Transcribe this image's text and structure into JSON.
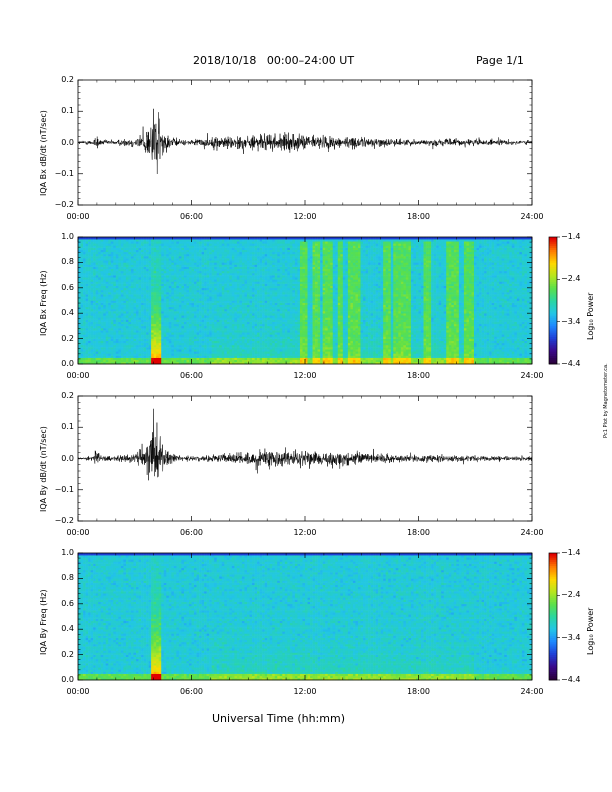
{
  "header": {
    "date_range": "2018/10/18   00:00–24:00 UT",
    "page": "Page 1/1"
  },
  "xlabel": "Universal Time (hh:mm)",
  "credit": "Pc1 Plot by Magnetometer.ca.",
  "colors": {
    "line": "#000000",
    "colormap": [
      "#2a003a",
      "#3a0a8c",
      "#1f3fd6",
      "#1e88ff",
      "#22c6e6",
      "#2ad6a0",
      "#5ce04a",
      "#b8e61e",
      "#ffd800",
      "#ff7a00",
      "#e00000"
    ]
  },
  "chart_data": [
    {
      "type": "line",
      "ylabel": "IQA Bx dB/dt (nT/sec)",
      "xlim": [
        0,
        24
      ],
      "ylim": [
        -0.2,
        0.2
      ],
      "xticks": [
        "00:00",
        "06:00",
        "12:00",
        "18:00",
        "24:00"
      ],
      "yticks": [
        "−0.2",
        "−0.1",
        "0.0",
        "0.1",
        "0.2"
      ],
      "envelope": {
        "hours": [
          0,
          0.8,
          1.0,
          1.2,
          2.0,
          3.0,
          3.5,
          3.8,
          4.0,
          4.2,
          4.4,
          4.7,
          5.0,
          5.5,
          6.0,
          7.0,
          8.0,
          9.0,
          10.0,
          11.0,
          12.0,
          13.0,
          14.0,
          15.0,
          16.0,
          17.0,
          18.0,
          19.0,
          20.0,
          21.0,
          22.0,
          23.0,
          24.0
        ],
        "amplitude": [
          0.01,
          0.015,
          0.05,
          0.015,
          0.015,
          0.03,
          0.06,
          0.12,
          0.2,
          0.2,
          0.09,
          0.05,
          0.03,
          0.015,
          0.015,
          0.03,
          0.04,
          0.04,
          0.05,
          0.05,
          0.045,
          0.04,
          0.035,
          0.03,
          0.025,
          0.02,
          0.015,
          0.02,
          0.02,
          0.02,
          0.015,
          0.015,
          0.012
        ]
      }
    },
    {
      "type": "heatmap",
      "ylabel": "IQA Bx Freq (Hz)",
      "xlim": [
        0,
        24
      ],
      "ylim": [
        0.0,
        1.0
      ],
      "xticks": [
        "00:00",
        "06:00",
        "12:00",
        "18:00",
        "24:00"
      ],
      "yticks": [
        "0.0",
        "0.2",
        "0.4",
        "0.6",
        "0.8",
        "1.0"
      ],
      "colorbar": {
        "label": "Log₁₀ Power",
        "ticks": [
          "−1.4",
          "−2.4",
          "−3.4",
          "−4.4"
        ],
        "range": [
          -4.4,
          -1.4
        ]
      },
      "bright_bands_hours": [
        [
          11.7,
          12.1
        ],
        [
          12.4,
          12.8
        ],
        [
          13.0,
          13.4
        ],
        [
          13.7,
          14.0
        ],
        [
          14.3,
          14.9
        ],
        [
          16.2,
          16.5
        ],
        [
          16.7,
          17.0
        ],
        [
          17.1,
          17.6
        ],
        [
          18.3,
          18.6
        ],
        [
          19.5,
          20.1
        ],
        [
          20.4,
          20.9
        ]
      ],
      "event_hours": [
        4.0,
        4.3
      ]
    },
    {
      "type": "line",
      "ylabel": "IQA By dB/dt (nT/sec)",
      "xlim": [
        0,
        24
      ],
      "ylim": [
        -0.2,
        0.2
      ],
      "xticks": [
        "00:00",
        "06:00",
        "12:00",
        "18:00",
        "24:00"
      ],
      "yticks": [
        "−0.2",
        "−0.1",
        "0.0",
        "0.1",
        "0.2"
      ],
      "envelope": {
        "hours": [
          0,
          0.8,
          1.0,
          1.2,
          2.0,
          3.0,
          3.5,
          3.8,
          4.0,
          4.2,
          4.4,
          4.7,
          5.0,
          5.5,
          6.0,
          7.0,
          8.0,
          9.0,
          10.0,
          11.0,
          12.0,
          13.0,
          14.0,
          15.0,
          16.0,
          17.0,
          18.0,
          19.0,
          20.0,
          21.0,
          22.0,
          23.0,
          24.0
        ],
        "amplitude": [
          0.01,
          0.015,
          0.07,
          0.015,
          0.015,
          0.03,
          0.08,
          0.13,
          0.2,
          0.2,
          0.1,
          0.05,
          0.03,
          0.015,
          0.015,
          0.02,
          0.03,
          0.035,
          0.045,
          0.05,
          0.045,
          0.04,
          0.035,
          0.03,
          0.025,
          0.02,
          0.02,
          0.02,
          0.02,
          0.015,
          0.015,
          0.012,
          0.01
        ]
      }
    },
    {
      "type": "heatmap",
      "ylabel": "IQA By Freq (Hz)",
      "xlim": [
        0,
        24
      ],
      "ylim": [
        0.0,
        1.0
      ],
      "xticks": [
        "00:00",
        "06:00",
        "12:00",
        "18:00",
        "24:00"
      ],
      "yticks": [
        "0.0",
        "0.2",
        "0.4",
        "0.6",
        "0.8",
        "1.0"
      ],
      "colorbar": {
        "label": "Log₁₀ Power",
        "ticks": [
          "−1.4",
          "−2.4",
          "−3.4",
          "−4.4"
        ],
        "range": [
          -4.4,
          -1.4
        ]
      },
      "bright_bands_hours": [],
      "event_hours": [
        4.0,
        4.3
      ]
    }
  ]
}
